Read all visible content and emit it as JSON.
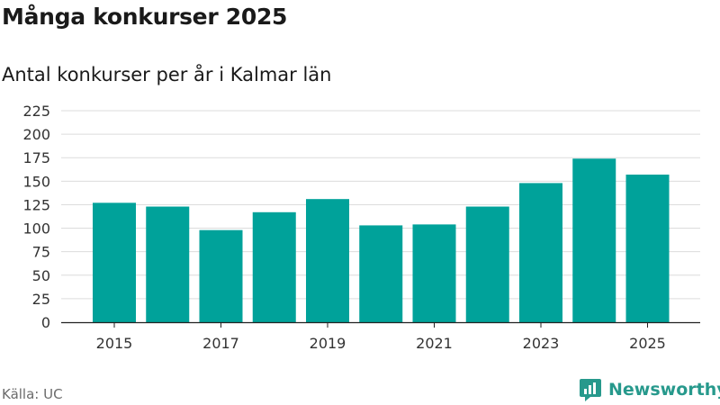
{
  "title": "Många konkurser 2025",
  "subtitle": "Antal konkurser per år i Kalmar län",
  "source": "Källa: UC",
  "brand": "Newsworthy",
  "colors": {
    "bar": "#00a29a",
    "grid": "#dcdcdc",
    "axis": "#222222",
    "brand": "#27998c"
  },
  "chart_data": {
    "type": "bar",
    "categories": [
      "2015",
      "2016",
      "2017",
      "2018",
      "2019",
      "2020",
      "2021",
      "2022",
      "2023",
      "2024",
      "2025"
    ],
    "values": [
      127,
      123,
      98,
      117,
      131,
      103,
      104,
      123,
      148,
      174,
      157
    ],
    "x_tick_labels": [
      "2015",
      "",
      "2017",
      "",
      "2019",
      "",
      "2021",
      "",
      "2023",
      "",
      "2025"
    ],
    "y_ticks": [
      0,
      25,
      50,
      75,
      100,
      125,
      150,
      175,
      200,
      225
    ],
    "ylim": [
      0,
      225
    ],
    "grid": true,
    "xlabel": "",
    "ylabel": ""
  }
}
